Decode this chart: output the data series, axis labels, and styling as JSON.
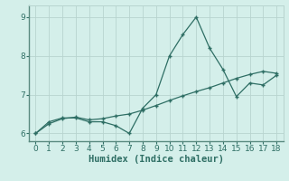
{
  "xlabel": "Humidex (Indice chaleur)",
  "x_data": [
    0,
    1,
    2,
    3,
    4,
    5,
    6,
    7,
    8,
    9,
    10,
    11,
    12,
    13,
    14,
    15,
    16,
    17,
    18
  ],
  "y_line1": [
    6.0,
    6.3,
    6.4,
    6.4,
    6.3,
    6.3,
    6.2,
    6.0,
    6.65,
    7.0,
    8.0,
    8.55,
    9.0,
    8.2,
    7.65,
    6.95,
    7.3,
    7.25,
    7.5
  ],
  "y_line2": [
    6.0,
    6.25,
    6.38,
    6.42,
    6.35,
    6.38,
    6.45,
    6.5,
    6.6,
    6.72,
    6.85,
    6.97,
    7.08,
    7.18,
    7.3,
    7.42,
    7.52,
    7.6,
    7.55
  ],
  "line_color": "#2e6e64",
  "bg_color": "#d4efea",
  "grid_color": "#b8d4cf",
  "spine_color": "#5a8a80",
  "ylim": [
    5.8,
    9.3
  ],
  "xlim": [
    -0.5,
    18.5
  ],
  "yticks": [
    6,
    7,
    8,
    9
  ],
  "xticks": [
    0,
    1,
    2,
    3,
    4,
    5,
    6,
    7,
    8,
    9,
    10,
    11,
    12,
    13,
    14,
    15,
    16,
    17,
    18
  ],
  "tick_fontsize": 6.5,
  "label_fontsize": 7.5
}
